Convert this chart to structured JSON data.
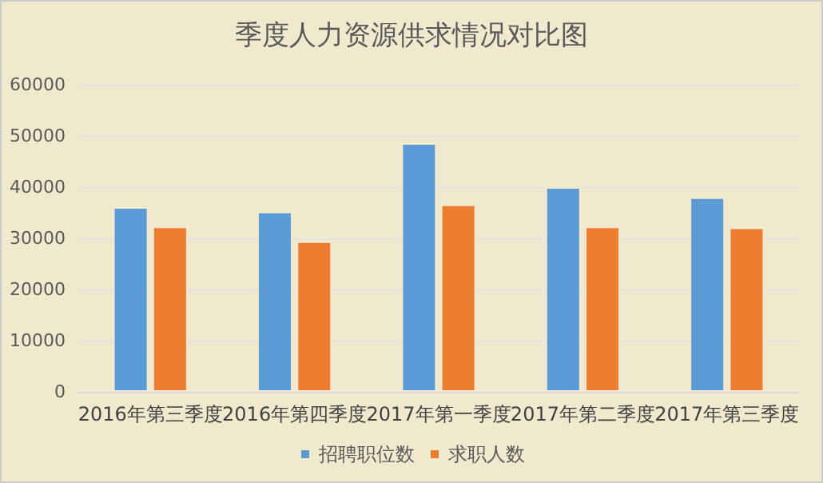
{
  "chart_data": {
    "type": "bar",
    "title": "季度人力资源供求情况对比图",
    "categories": [
      "2016年第三季度",
      "2016年第四季度",
      "2017年第一季度",
      "2017年第二季度",
      "2017年第三季度"
    ],
    "series": [
      {
        "name": "招聘职位数",
        "color": "#5b9bd5",
        "values": [
          36100,
          35200,
          48600,
          40000,
          38000
        ]
      },
      {
        "name": "求职人数",
        "color": "#ed7d31",
        "values": [
          32300,
          29400,
          36600,
          32300,
          32100
        ]
      }
    ],
    "ylim": [
      0,
      60000
    ],
    "yticks": [
      0,
      10000,
      20000,
      30000,
      40000,
      50000,
      60000
    ],
    "grid": "y",
    "legend": "bottom"
  }
}
